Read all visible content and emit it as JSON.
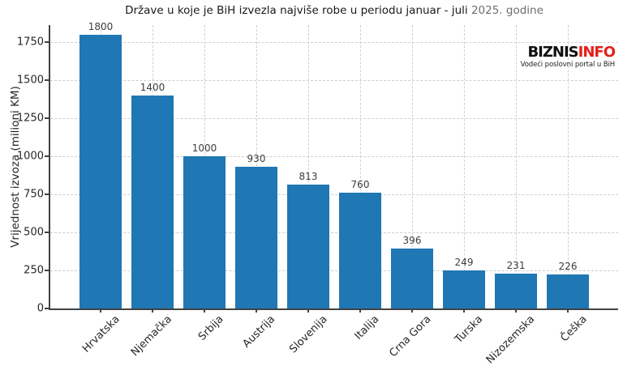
{
  "title": {
    "main": "Države u koje je BiH izvezla najviše robe u periodu januar - juli",
    "suffix": "2025. godine",
    "suffix_color": "#6e6e6e"
  },
  "logo": {
    "part1": "BIZNIS",
    "part2": "INFO",
    "part2_color": "#e3211b",
    "tagline": "Vodeći poslovni portal u BiH"
  },
  "chart_data": {
    "type": "bar",
    "title": "Države u koje je BiH izvezla najviše robe u periodu januar - juli 2025. godine",
    "categories": [
      "Hrvatska",
      "Njemačka",
      "Srbija",
      "Austrija",
      "Slovenija",
      "Italija",
      "Crna Gora",
      "Turska",
      "Nizozemska",
      "Češka"
    ],
    "values": [
      1800,
      1400,
      1000,
      930,
      813,
      760,
      396,
      249,
      231,
      226
    ],
    "xlabel": "",
    "ylabel": "Vrijednost izvoza (milioni KM)",
    "yticks": [
      0,
      250,
      500,
      750,
      1000,
      1250,
      1500,
      1750
    ],
    "ylim": [
      0,
      1864
    ],
    "bar_color": "#1f77b4",
    "grid": true,
    "grid_color": "#cfcfcf",
    "value_labels": true,
    "legend": "none"
  }
}
